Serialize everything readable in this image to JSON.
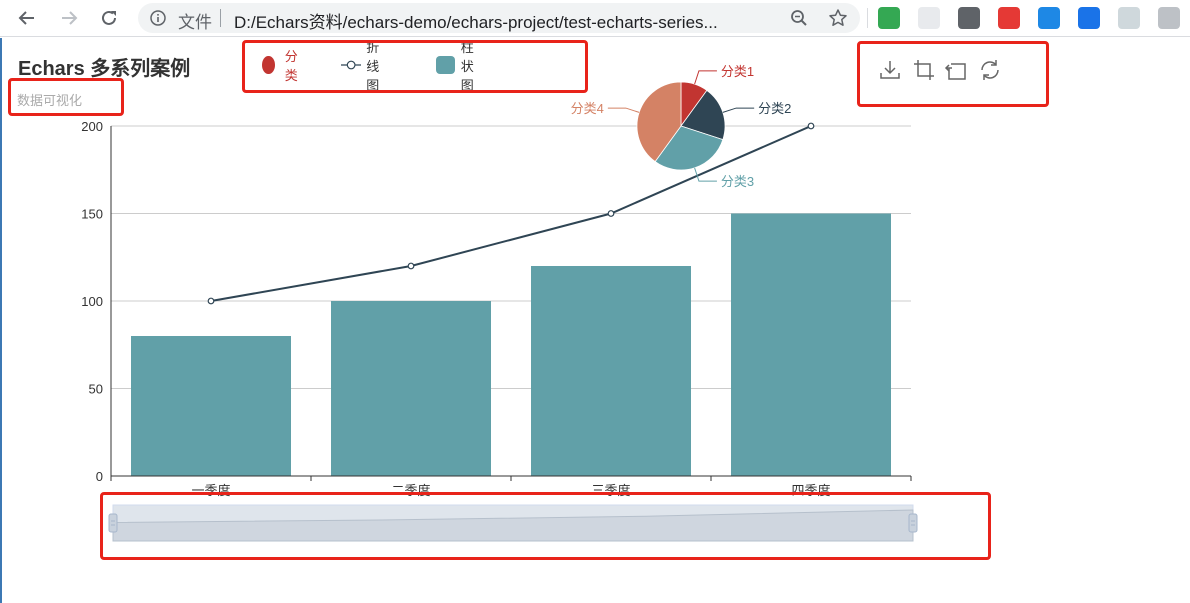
{
  "browser": {
    "back_icon": "arrow-left-icon",
    "forward_icon": "arrow-right-icon",
    "reload_icon": "reload-icon",
    "info_icon": "info-icon",
    "scheme_label": "文件",
    "url": "D:/Echars资料/echars-demo/echars-project/test-echarts-series...",
    "zoom_icon": "zoom-icon",
    "star_icon": "star-icon",
    "extensions": [
      {
        "name": "extension-1",
        "color": "#34a853"
      },
      {
        "name": "extension-2",
        "color": "#e8eaed"
      },
      {
        "name": "extension-3",
        "color": "#5f6368"
      },
      {
        "name": "extension-4",
        "color": "#e53935"
      },
      {
        "name": "extension-5",
        "color": "#1e88e5"
      },
      {
        "name": "extension-6",
        "color": "#1a73e8"
      },
      {
        "name": "extension-7",
        "color": "#cfd8dc"
      },
      {
        "name": "extension-8",
        "color": "#bdc1c6"
      }
    ]
  },
  "chart": {
    "title": "Echars 多系列案例",
    "subtitle": "数据可视化",
    "legend": [
      {
        "label": "分类",
        "icon": "circle",
        "color": "#c23531"
      },
      {
        "label": "折线图",
        "icon": "empty-circle-line",
        "color": "#2f4554"
      },
      {
        "label": "柱状图",
        "icon": "rounded-rect",
        "color": "#61a0a8"
      }
    ],
    "toolbox": [
      {
        "name": "save-as-image-icon"
      },
      {
        "name": "data-zoom-icon"
      },
      {
        "name": "data-zoom-reset-icon"
      },
      {
        "name": "restore-icon"
      }
    ],
    "annotation_color": "#e8231a"
  },
  "chart_data": [
    {
      "type": "bar",
      "series_name": "柱状图",
      "categories": [
        "一季度",
        "二季度",
        "三季度",
        "四季度"
      ],
      "values": [
        80,
        100,
        120,
        150
      ],
      "color": "#61a0a8",
      "ylim": [
        0,
        200
      ],
      "yticks": [
        0,
        50,
        100,
        150,
        200
      ],
      "grid": true
    },
    {
      "type": "line",
      "series_name": "折线图",
      "categories": [
        "一季度",
        "二季度",
        "三季度",
        "四季度"
      ],
      "values": [
        100,
        120,
        150,
        200
      ],
      "color": "#2f4554"
    },
    {
      "type": "pie",
      "series_name": "分类",
      "slices": [
        {
          "label": "分类1",
          "value": 10,
          "color": "#c23531"
        },
        {
          "label": "分类2",
          "value": 20,
          "color": "#2f4554"
        },
        {
          "label": "分类3",
          "value": 30,
          "color": "#61a0a8"
        },
        {
          "label": "分类4",
          "value": 40,
          "color": "#d48265"
        }
      ]
    }
  ],
  "data_zoom": {
    "start_percent": 0,
    "end_percent": 100
  }
}
